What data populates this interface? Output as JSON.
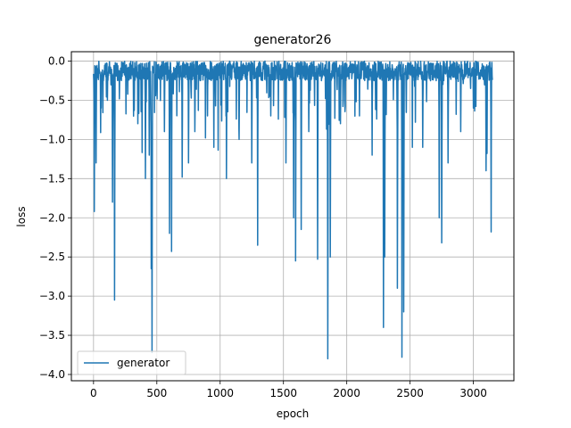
{
  "chart_data": {
    "type": "line",
    "title": "generator26",
    "xlabel": "epoch",
    "ylabel": "loss",
    "xlim": [
      -175,
      3320
    ],
    "ylim": [
      -4.08,
      0.12
    ],
    "xticks": [
      0,
      500,
      1000,
      1500,
      2000,
      2500,
      3000
    ],
    "yticks": [
      0.0,
      -0.5,
      -1.0,
      -1.5,
      -2.0,
      -2.5,
      -3.0,
      -3.5,
      -4.0
    ],
    "xtick_labels": [
      "0",
      "500",
      "1000",
      "1500",
      "2000",
      "2500",
      "3000"
    ],
    "ytick_labels": [
      "0.0",
      "−0.5",
      "−1.0",
      "−1.5",
      "−2.0",
      "−2.5",
      "−3.0",
      "−3.5",
      "−4.0"
    ],
    "grid": true,
    "legend_position": "lower-left",
    "color": "#1f77b4",
    "series": [
      {
        "name": "generator",
        "x_start": 0,
        "x_end": 3150,
        "baseline_noise": 0.25,
        "spikes": [
          {
            "x": 5,
            "y": -1.92
          },
          {
            "x": 20,
            "y": -1.3
          },
          {
            "x": 60,
            "y": -0.6
          },
          {
            "x": 110,
            "y": -0.5
          },
          {
            "x": 150,
            "y": -1.8
          },
          {
            "x": 165,
            "y": -3.05
          },
          {
            "x": 350,
            "y": -0.8
          },
          {
            "x": 410,
            "y": -1.5
          },
          {
            "x": 440,
            "y": -1.2
          },
          {
            "x": 455,
            "y": -2.65
          },
          {
            "x": 462,
            "y": -3.72
          },
          {
            "x": 560,
            "y": -0.9
          },
          {
            "x": 600,
            "y": -2.2
          },
          {
            "x": 615,
            "y": -2.43
          },
          {
            "x": 700,
            "y": -1.48
          },
          {
            "x": 750,
            "y": -1.3
          },
          {
            "x": 800,
            "y": -0.9
          },
          {
            "x": 900,
            "y": -0.7
          },
          {
            "x": 950,
            "y": -1.1
          },
          {
            "x": 1050,
            "y": -1.5
          },
          {
            "x": 1150,
            "y": -1.0
          },
          {
            "x": 1250,
            "y": -1.3
          },
          {
            "x": 1295,
            "y": -2.35
          },
          {
            "x": 1400,
            "y": -0.7
          },
          {
            "x": 1520,
            "y": -1.3
          },
          {
            "x": 1580,
            "y": -2.0
          },
          {
            "x": 1595,
            "y": -2.55
          },
          {
            "x": 1640,
            "y": -2.15
          },
          {
            "x": 1700,
            "y": -0.9
          },
          {
            "x": 1770,
            "y": -2.53
          },
          {
            "x": 1850,
            "y": -3.8
          },
          {
            "x": 1870,
            "y": -2.5
          },
          {
            "x": 1950,
            "y": -0.8
          },
          {
            "x": 2100,
            "y": -0.7
          },
          {
            "x": 2200,
            "y": -1.2
          },
          {
            "x": 2290,
            "y": -3.4
          },
          {
            "x": 2300,
            "y": -2.5
          },
          {
            "x": 2400,
            "y": -2.9
          },
          {
            "x": 2435,
            "y": -3.78
          },
          {
            "x": 2450,
            "y": -3.2
          },
          {
            "x": 2600,
            "y": -1.1
          },
          {
            "x": 2730,
            "y": -2.0
          },
          {
            "x": 2750,
            "y": -2.32
          },
          {
            "x": 2800,
            "y": -1.3
          },
          {
            "x": 2900,
            "y": -0.9
          },
          {
            "x": 3000,
            "y": -0.6
          },
          {
            "x": 3100,
            "y": -1.4
          },
          {
            "x": 3140,
            "y": -2.18
          }
        ]
      }
    ]
  }
}
